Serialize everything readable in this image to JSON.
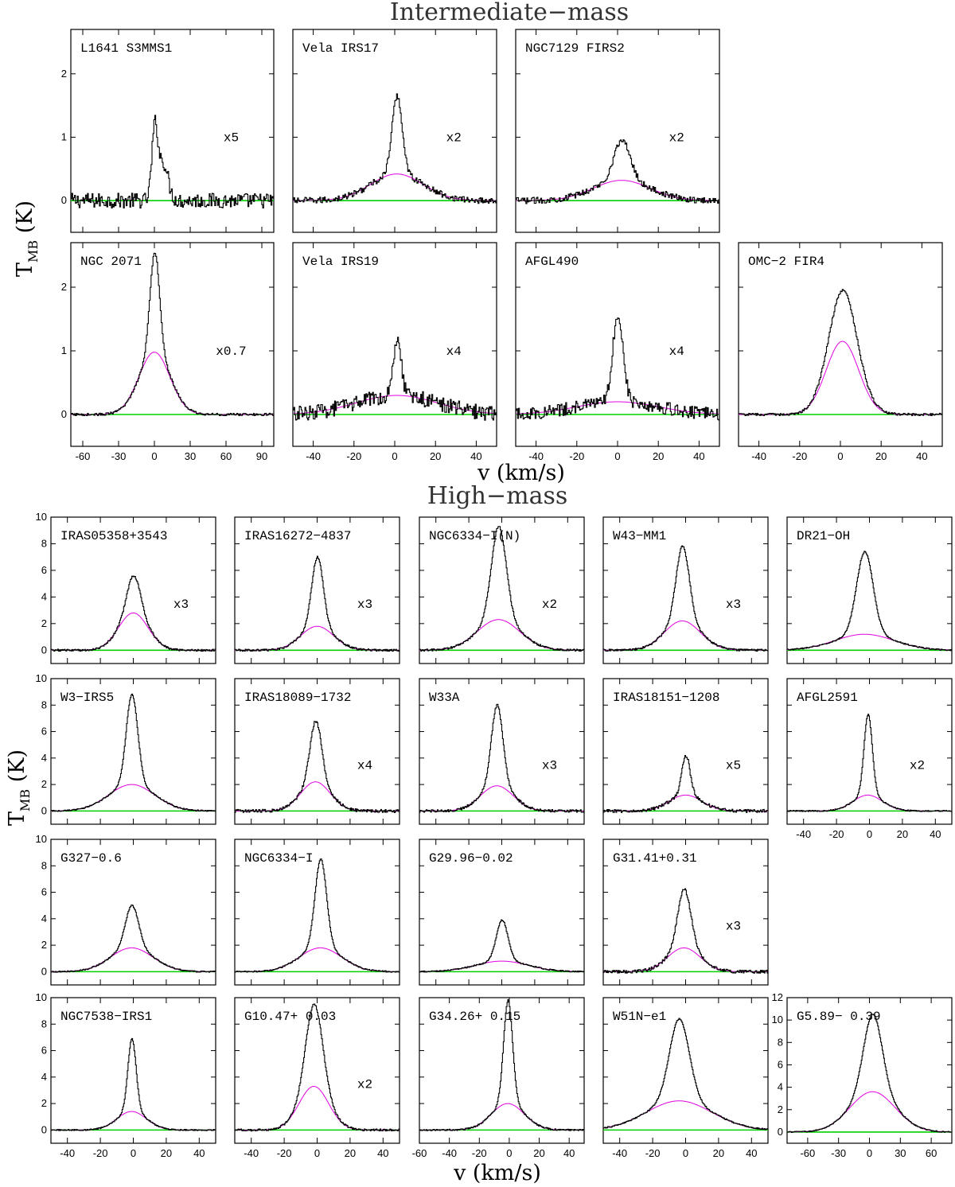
{
  "colors": {
    "spectrum": "#000000",
    "fit": "#e000e0",
    "baseline": "#00d000",
    "frame": "#000000"
  },
  "labels": {
    "intermediate_title": "Intermediate−mass",
    "high_title": "High−mass",
    "xlabel": "v (km/s)",
    "ylabel_main": "T",
    "ylabel_sub": "MB",
    "ylabel_unit": " (K)"
  },
  "chart_data": [
    {
      "type": "line",
      "group": "intermediate",
      "title": "L1641 S3MMS1",
      "scale": "x5",
      "xlim": [
        -70,
        100
      ],
      "ylim": [
        -0.5,
        2.7
      ],
      "peak": 1.1,
      "center": 0,
      "width": 2.5,
      "broad_amp": 0.0,
      "broad_width": 15,
      "shoulder": 0.6,
      "noise": 0.12
    },
    {
      "type": "line",
      "group": "intermediate",
      "title": "Vela IRS17",
      "scale": "x2",
      "xlim": [
        -50,
        50
      ],
      "ylim": [
        -0.5,
        2.7
      ],
      "peak": 1.65,
      "center": 1,
      "width": 2.5,
      "broad_amp": 0.42,
      "broad_width": 13,
      "noise": 0.05
    },
    {
      "type": "line",
      "group": "intermediate",
      "title": "NGC7129 FIRS2",
      "scale": "x2",
      "xlim": [
        -50,
        50
      ],
      "ylim": [
        -0.5,
        2.7
      ],
      "peak": 0.95,
      "center": 2,
      "width": 4,
      "broad_amp": 0.32,
      "broad_width": 14,
      "noise": 0.05
    },
    {
      "type": "line",
      "group": "intermediate",
      "title": "NGC 2071",
      "scale": "x0.7",
      "xlim": [
        -70,
        100
      ],
      "ylim": [
        -0.5,
        2.7
      ],
      "peak": 2.55,
      "center": 0,
      "width": 4,
      "broad_amp": 0.98,
      "broad_width": 13,
      "noise": 0.02
    },
    {
      "type": "line",
      "group": "intermediate",
      "title": "Vela IRS19",
      "scale": "x4",
      "xlim": [
        -50,
        50
      ],
      "ylim": [
        -0.5,
        2.7
      ],
      "peak": 1.2,
      "center": 1,
      "width": 2,
      "broad_amp": 0.3,
      "broad_width": 20,
      "noise": 0.12
    },
    {
      "type": "line",
      "group": "intermediate",
      "title": "AFGL490",
      "scale": "x4",
      "xlim": [
        -50,
        50
      ],
      "ylim": [
        -0.5,
        2.7
      ],
      "peak": 1.6,
      "center": 0,
      "width": 2.5,
      "broad_amp": 0.2,
      "broad_width": 20,
      "noise": 0.1
    },
    {
      "type": "line",
      "group": "intermediate",
      "title": "OMC−2 FIR4",
      "scale": "",
      "xlim": [
        -50,
        50
      ],
      "ylim": [
        -0.5,
        2.7
      ],
      "peak": 1.95,
      "center": 1,
      "width": 6,
      "broad_amp": 1.15,
      "broad_width": 8,
      "noise": 0.02
    },
    {
      "type": "line",
      "group": "high",
      "title": "IRAS05358+3543",
      "scale": "x3",
      "xlim": [
        -50,
        50
      ],
      "ylim": [
        -1,
        10
      ],
      "peak": 5.6,
      "center": 0,
      "width": 4,
      "broad_amp": 2.8,
      "broad_width": 9,
      "noise": 0.08
    },
    {
      "type": "line",
      "group": "high",
      "title": "IRAS16272−4837",
      "scale": "x3",
      "xlim": [
        -50,
        50
      ],
      "ylim": [
        -1,
        10
      ],
      "peak": 7.0,
      "center": 0,
      "width": 3.5,
      "broad_amp": 1.8,
      "broad_width": 10,
      "noise": 0.08
    },
    {
      "type": "line",
      "group": "high",
      "title": "NGC6334−I(N)",
      "scale": "x2",
      "xlim": [
        -50,
        50
      ],
      "ylim": [
        -1,
        10
      ],
      "peak": 9.3,
      "center": -2,
      "width": 4.5,
      "broad_amp": 2.3,
      "broad_width": 13,
      "noise": 0.08
    },
    {
      "type": "line",
      "group": "high",
      "title": "W43−MM1",
      "scale": "x3",
      "xlim": [
        -50,
        50
      ],
      "ylim": [
        -1,
        10
      ],
      "peak": 7.8,
      "center": -2,
      "width": 4,
      "broad_amp": 2.2,
      "broad_width": 11,
      "noise": 0.08
    },
    {
      "type": "line",
      "group": "high",
      "title": "DR21−OH",
      "scale": "",
      "xlim": [
        -50,
        50
      ],
      "ylim": [
        -1,
        10
      ],
      "peak": 7.4,
      "center": -3,
      "width": 5,
      "broad_amp": 1.2,
      "broad_width": 18,
      "noise": 0.05
    },
    {
      "type": "line",
      "group": "high",
      "title": "W3−IRS5",
      "scale": "",
      "xlim": [
        -50,
        50
      ],
      "ylim": [
        -1,
        10
      ],
      "peak": 8.8,
      "center": -1,
      "width": 3.5,
      "broad_amp": 2.0,
      "broad_width": 14,
      "noise": 0.05
    },
    {
      "type": "line",
      "group": "high",
      "title": "IRAS18089−1732",
      "scale": "x4",
      "xlim": [
        -50,
        50
      ],
      "ylim": [
        -1,
        10
      ],
      "peak": 6.8,
      "center": -1,
      "width": 3.5,
      "broad_amp": 2.2,
      "broad_width": 9,
      "noise": 0.12
    },
    {
      "type": "line",
      "group": "high",
      "title": "W33A",
      "scale": "x3",
      "xlim": [
        -50,
        50
      ],
      "ylim": [
        -1,
        10
      ],
      "peak": 8.0,
      "center": -3,
      "width": 3.5,
      "broad_amp": 1.9,
      "broad_width": 10,
      "noise": 0.1
    },
    {
      "type": "line",
      "group": "high",
      "title": "IRAS18151−1208",
      "scale": "x5",
      "xlim": [
        -50,
        50
      ],
      "ylim": [
        -1,
        10
      ],
      "peak": 4.2,
      "center": 0,
      "width": 2.5,
      "broad_amp": 1.2,
      "broad_width": 10,
      "noise": 0.12
    },
    {
      "type": "line",
      "group": "high",
      "title": "AFGL2591",
      "scale": "x2",
      "xlim": [
        -50,
        50
      ],
      "ylim": [
        -1,
        10
      ],
      "peak": 7.3,
      "center": -1,
      "width": 2.5,
      "broad_amp": 1.2,
      "broad_width": 9,
      "noise": 0.05
    },
    {
      "type": "line",
      "group": "high",
      "title": "G327−0.6",
      "scale": "",
      "xlim": [
        -50,
        50
      ],
      "ylim": [
        -1,
        10
      ],
      "peak": 5.0,
      "center": -1,
      "width": 4,
      "broad_amp": 1.8,
      "broad_width": 13,
      "noise": 0.05
    },
    {
      "type": "line",
      "group": "high",
      "title": "NGC6334−I",
      "scale": "",
      "xlim": [
        -50,
        50
      ],
      "ylim": [
        -1,
        10
      ],
      "peak": 8.5,
      "center": 2,
      "width": 3.5,
      "broad_amp": 1.8,
      "broad_width": 13,
      "noise": 0.05
    },
    {
      "type": "line",
      "group": "high",
      "title": "G29.96−0.02",
      "scale": "",
      "xlim": [
        -50,
        50
      ],
      "ylim": [
        -1,
        10
      ],
      "peak": 3.9,
      "center": 0,
      "width": 3.5,
      "broad_amp": 0.8,
      "broad_width": 16,
      "noise": 0.05
    },
    {
      "type": "line",
      "group": "high",
      "title": "G31.41+0.31",
      "scale": "x3",
      "xlim": [
        -50,
        50
      ],
      "ylim": [
        -1,
        10
      ],
      "peak": 6.2,
      "center": -1,
      "width": 4,
      "broad_amp": 1.8,
      "broad_width": 10,
      "noise": 0.12
    },
    {
      "type": "line",
      "group": "high",
      "title": "NGC7538−IRS1",
      "scale": "",
      "xlim": [
        -50,
        50
      ],
      "ylim": [
        -1,
        10
      ],
      "peak": 6.9,
      "center": -1,
      "width": 2.5,
      "broad_amp": 1.4,
      "broad_width": 9,
      "noise": 0.05
    },
    {
      "type": "line",
      "group": "high",
      "title": "G10.47+ 0.03",
      "scale": "x2",
      "xlim": [
        -50,
        50
      ],
      "ylim": [
        -1,
        10
      ],
      "peak": 9.5,
      "center": -2,
      "width": 5,
      "broad_amp": 3.3,
      "broad_width": 9,
      "noise": 0.08
    },
    {
      "type": "line",
      "group": "high",
      "title": "G34.26+ 0.15",
      "scale": "",
      "xlim": [
        -60,
        50
      ],
      "ylim": [
        -1,
        10
      ],
      "peak": 9.8,
      "center": -1,
      "width": 3,
      "broad_amp": 2.0,
      "broad_width": 11,
      "noise": 0.06
    },
    {
      "type": "line",
      "group": "high",
      "title": "W51N−e1",
      "scale": "",
      "xlim": [
        -50,
        50
      ],
      "ylim": [
        -1,
        10
      ],
      "peak": 8.4,
      "center": -4,
      "width": 6,
      "broad_amp": 2.2,
      "broad_width": 20,
      "noise": 0.05
    },
    {
      "type": "line",
      "group": "high",
      "title": "G5.89− 0.39",
      "scale": "",
      "xlim": [
        -80,
        80
      ],
      "ylim": [
        -1,
        12
      ],
      "peak": 10.5,
      "center": 3,
      "width": 9,
      "broad_amp": 3.6,
      "broad_width": 22,
      "noise": 0.05
    }
  ]
}
